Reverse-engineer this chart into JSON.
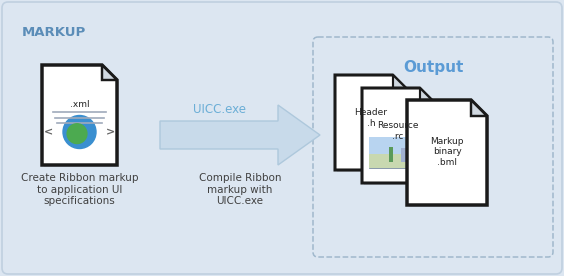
{
  "bg_color": "#dce6f1",
  "outer_box_label": "MARKUP",
  "output_label": "Output",
  "arrow_color": "#c8daea",
  "arrow_border_color": "#b0cce0",
  "arrow_label": "UICC.exe",
  "arrow_label_color": "#6baed6",
  "caption1": "Create Ribbon markup\nto application UI\nspecifications",
  "caption2": "Compile Ribbon\nmarkup with\nUICC.exe",
  "file1_label": "Header\n.h",
  "file2_label": "Resource\n.rc",
  "file3_label": "Markup\nbinary\n.bml",
  "xml_label": ".xml",
  "text_color": "#404040",
  "h_color": "#7bafd4",
  "figsize": [
    5.64,
    2.76
  ],
  "dpi": 100
}
